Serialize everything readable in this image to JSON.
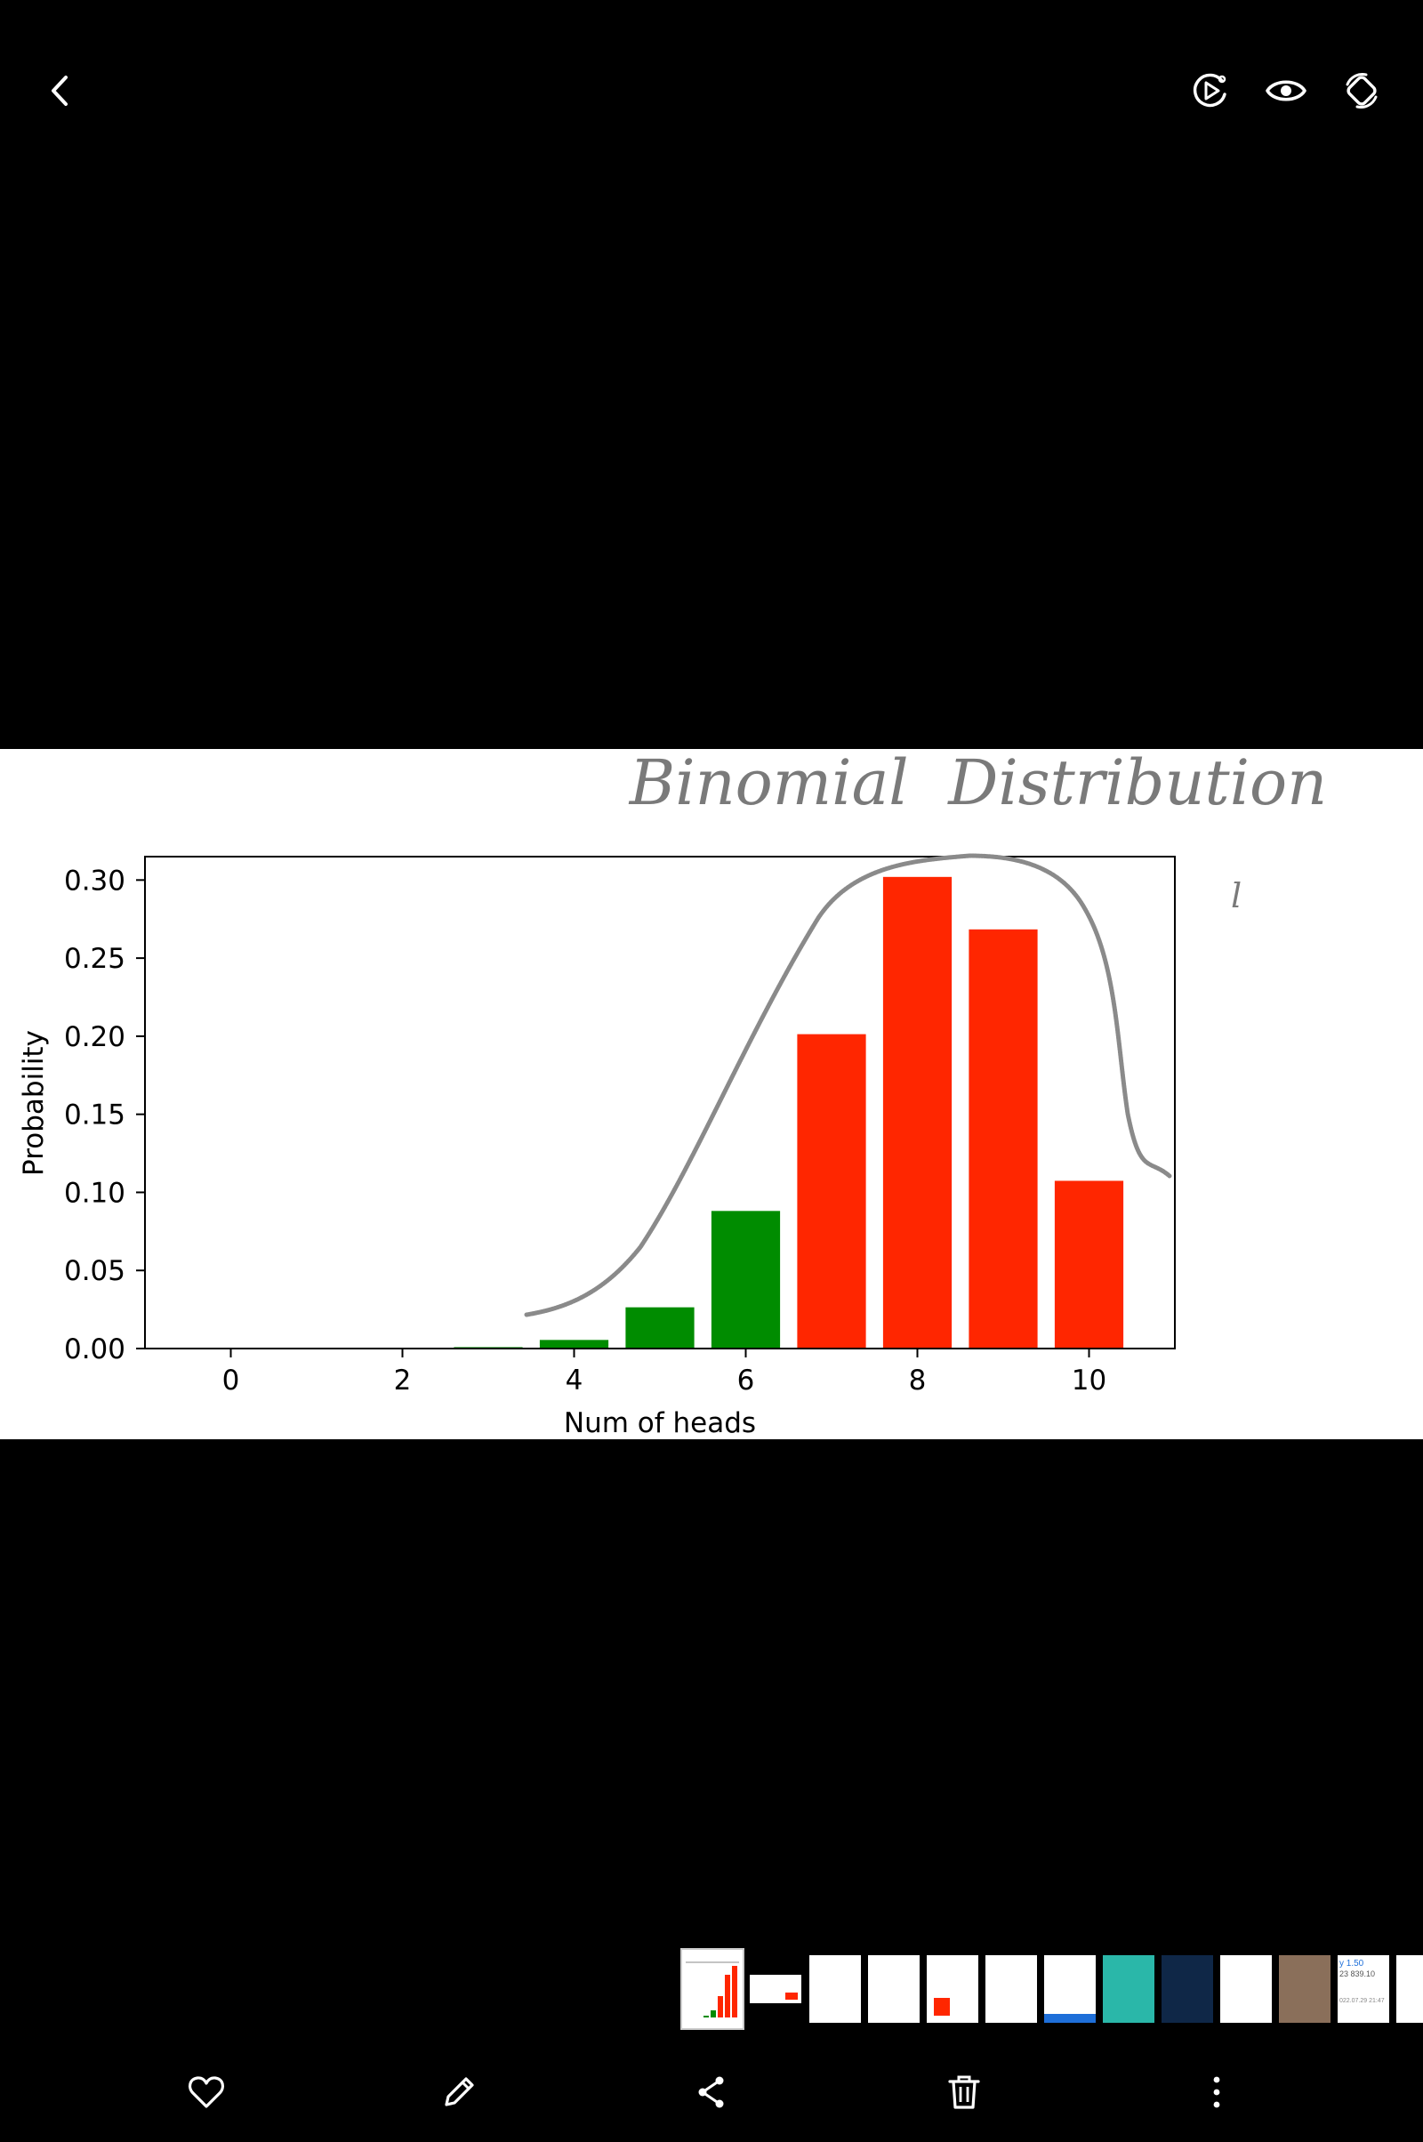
{
  "viewer": {
    "top_icons": [
      "back-icon",
      "play-motion-icon",
      "eye-icon",
      "rotate-icon"
    ],
    "bottom_icons": [
      "heart-icon",
      "pencil-icon",
      "share-icon",
      "trash-icon",
      "more-icon"
    ],
    "thumb_texts": {
      "t12_line1": "y 1.50",
      "t12_line2": "23 839.10",
      "t12_line3": "022.07.29 21:47"
    }
  },
  "photo": {
    "handwritten_title": "Binomial  Distribution",
    "handwritten_mark": "l",
    "colors": {
      "green": "#008c00",
      "red": "#ff2600",
      "curve": "#8a8a8a"
    }
  },
  "chart_data": {
    "type": "bar",
    "xlabel": "Num of heads",
    "ylabel": "Probability",
    "x": [
      3,
      4,
      5,
      6,
      7,
      8,
      9,
      10
    ],
    "values": [
      0.0009,
      0.0055,
      0.0264,
      0.0881,
      0.2013,
      0.302,
      0.2684,
      0.1074
    ],
    "bar_colors": [
      "green",
      "green",
      "green",
      "green",
      "red",
      "red",
      "red",
      "red"
    ],
    "xlim": [
      -1,
      11
    ],
    "ylim": [
      0,
      0.315
    ],
    "xticks": [
      0,
      2,
      4,
      6,
      8,
      10
    ],
    "yticks": [
      "0.00",
      "0.05",
      "0.10",
      "0.15",
      "0.20",
      "0.25",
      "0.30"
    ],
    "grid": false
  }
}
